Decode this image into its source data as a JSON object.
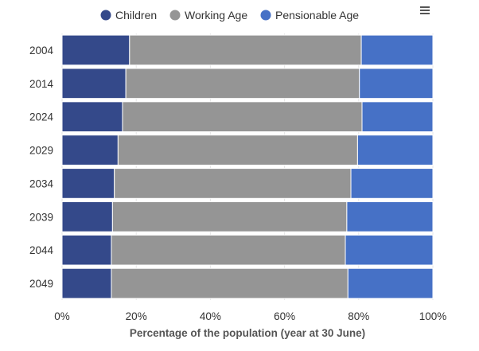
{
  "chart_data": {
    "type": "bar",
    "orientation": "horizontal",
    "stacking": "percent",
    "categories": [
      "2004",
      "2014",
      "2024",
      "2029",
      "2034",
      "2039",
      "2044",
      "2049"
    ],
    "series": [
      {
        "name": "Children",
        "color": "#34498a",
        "values": [
          18.2,
          17.2,
          16.3,
          15.1,
          14.1,
          13.6,
          13.3,
          13.3
        ]
      },
      {
        "name": "Working Age",
        "color": "#959595",
        "values": [
          62.5,
          63.0,
          64.6,
          64.6,
          63.8,
          63.2,
          63.1,
          63.8
        ]
      },
      {
        "name": "Pensionable Age",
        "color": "#4671c6",
        "values": [
          19.3,
          19.8,
          19.1,
          20.3,
          22.1,
          23.2,
          23.6,
          22.9
        ]
      }
    ],
    "xlabel": "Percentage of the population (year at 30 June)",
    "ylabel": "",
    "xlim": [
      0,
      100
    ],
    "xticks": [
      "0%",
      "20%",
      "40%",
      "60%",
      "80%",
      "100%"
    ],
    "grid": true,
    "legend_position": "top-center"
  },
  "menu_icon": "hamburger-menu-icon"
}
